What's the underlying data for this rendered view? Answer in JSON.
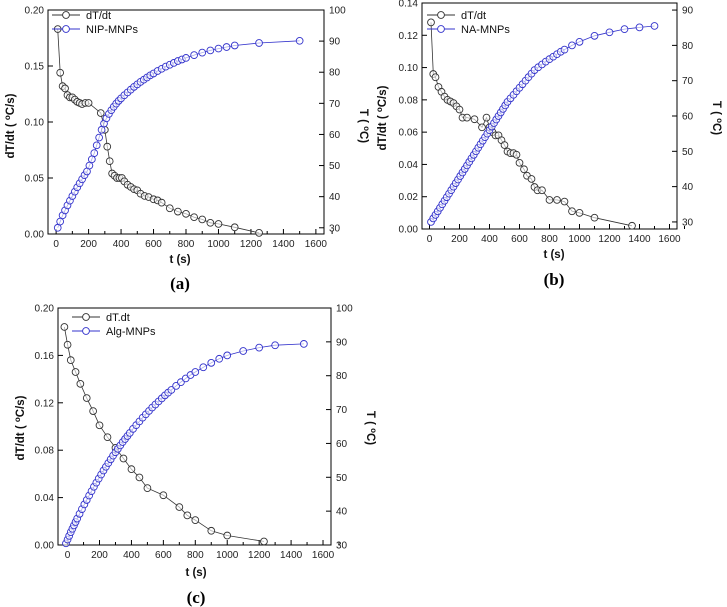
{
  "chart_data": [
    {
      "type": "line",
      "panel_label": "(a)",
      "xlabel": "t (s)",
      "ylabel_left": "dT/dt (oC/s)",
      "ylabel_right": "T (oC)",
      "x_ticks": [
        0,
        200,
        400,
        600,
        800,
        1000,
        1200,
        1400,
        1600
      ],
      "xlim": [
        -50,
        1650
      ],
      "yleft_ticks": [
        0.0,
        0.05,
        0.1,
        0.15,
        0.2
      ],
      "yleft_ticklabels": [
        "0.00",
        "0.05",
        "0.10",
        "0.15",
        "0.20"
      ],
      "yleft_lim": [
        0,
        0.2
      ],
      "yright_ticks": [
        30,
        40,
        50,
        60,
        70,
        80,
        90,
        100
      ],
      "yright_lim": [
        28,
        100
      ],
      "legend_position": "top-left",
      "colors": {
        "rate": "#333333",
        "temp": "#3333cc"
      },
      "series": [
        {
          "name": "dT/dt",
          "axis": "left",
          "x": [
            10,
            25,
            40,
            55,
            70,
            85,
            100,
            115,
            130,
            145,
            160,
            180,
            200,
            275,
            300,
            315,
            330,
            345,
            360,
            375,
            390,
            405,
            420,
            440,
            460,
            480,
            500,
            520,
            545,
            570,
            600,
            625,
            650,
            700,
            750,
            800,
            850,
            900,
            950,
            1000,
            1100,
            1250
          ],
          "values": [
            0.183,
            0.144,
            0.132,
            0.13,
            0.124,
            0.122,
            0.122,
            0.12,
            0.118,
            0.117,
            0.116,
            0.117,
            0.117,
            0.108,
            0.093,
            0.078,
            0.065,
            0.054,
            0.052,
            0.05,
            0.05,
            0.05,
            0.047,
            0.044,
            0.042,
            0.04,
            0.039,
            0.036,
            0.034,
            0.033,
            0.031,
            0.03,
            0.028,
            0.023,
            0.02,
            0.018,
            0.015,
            0.013,
            0.01,
            0.009,
            0.006,
            0.001
          ]
        },
        {
          "name": "NIP-MNPs",
          "axis": "right",
          "x": [
            10,
            25,
            40,
            55,
            70,
            85,
            100,
            115,
            130,
            145,
            160,
            175,
            190,
            205,
            220,
            235,
            250,
            265,
            280,
            295,
            310,
            325,
            340,
            355,
            370,
            385,
            400,
            420,
            440,
            460,
            480,
            500,
            520,
            540,
            560,
            580,
            600,
            625,
            650,
            675,
            700,
            725,
            750,
            775,
            800,
            850,
            900,
            950,
            1000,
            1050,
            1100,
            1250,
            1500
          ],
          "values": [
            30,
            32,
            34,
            35.6,
            37.2,
            38.7,
            40.2,
            41.6,
            43,
            44.3,
            45.6,
            46.9,
            48.1,
            50,
            52,
            54,
            56.5,
            59,
            61.5,
            63.5,
            65.2,
            66.6,
            67.8,
            68.9,
            69.9,
            70.8,
            71.6,
            72.6,
            73.5,
            74.4,
            75.3,
            76.1,
            76.9,
            77.6,
            78.3,
            79,
            79.6,
            80.4,
            81.1,
            81.8,
            82.4,
            83,
            83.6,
            84.1,
            84.6,
            85.5,
            86.3,
            87,
            87.6,
            88.1,
            88.6,
            89.4,
            90.1
          ]
        }
      ]
    },
    {
      "type": "line",
      "panel_label": "(b)",
      "xlabel": "t (s)",
      "ylabel_left": "dT/dt (oC/s)",
      "ylabel_right": "T (oC)",
      "x_ticks": [
        0,
        200,
        400,
        600,
        800,
        1000,
        1200,
        1400,
        1600
      ],
      "xlim": [
        -50,
        1650
      ],
      "yleft_ticks": [
        0.0,
        0.02,
        0.04,
        0.06,
        0.08,
        0.1,
        0.12,
        0.14
      ],
      "yleft_ticklabels": [
        "0.00",
        "0.02",
        "0.04",
        "0.06",
        "0.08",
        "0.10",
        "0.12",
        "0.14"
      ],
      "yleft_lim": [
        0,
        0.14
      ],
      "yright_ticks": [
        30,
        40,
        50,
        60,
        70,
        80,
        90
      ],
      "yright_lim": [
        28,
        92
      ],
      "legend_position": "top-left",
      "colors": {
        "rate": "#333333",
        "temp": "#3333cc"
      },
      "series": [
        {
          "name": "dT/dt",
          "axis": "left",
          "x": [
            10,
            25,
            40,
            60,
            80,
            100,
            120,
            140,
            160,
            180,
            200,
            220,
            250,
            300,
            350,
            380,
            400,
            420,
            440,
            460,
            480,
            500,
            520,
            540,
            560,
            580,
            600,
            630,
            650,
            680,
            700,
            720,
            750,
            800,
            850,
            900,
            950,
            1000,
            1100,
            1350
          ],
          "values": [
            0.128,
            0.096,
            0.094,
            0.088,
            0.085,
            0.082,
            0.08,
            0.079,
            0.078,
            0.076,
            0.074,
            0.069,
            0.069,
            0.068,
            0.063,
            0.069,
            0.063,
            0.06,
            0.058,
            0.058,
            0.055,
            0.052,
            0.048,
            0.047,
            0.047,
            0.046,
            0.041,
            0.037,
            0.033,
            0.031,
            0.026,
            0.024,
            0.024,
            0.018,
            0.018,
            0.017,
            0.011,
            0.01,
            0.007,
            0.002
          ]
        },
        {
          "name": "NA-MNPs",
          "axis": "right",
          "x": [
            10,
            25,
            40,
            55,
            70,
            85,
            100,
            115,
            130,
            145,
            160,
            175,
            190,
            205,
            220,
            235,
            250,
            265,
            280,
            295,
            310,
            325,
            340,
            355,
            370,
            385,
            400,
            415,
            430,
            445,
            460,
            475,
            490,
            505,
            520,
            540,
            560,
            580,
            600,
            620,
            640,
            660,
            680,
            700,
            725,
            750,
            775,
            800,
            825,
            850,
            875,
            900,
            950,
            1000,
            1100,
            1200,
            1300,
            1400,
            1500
          ],
          "values": [
            30,
            31,
            32,
            33,
            34,
            35,
            36,
            37,
            38,
            39,
            40,
            41,
            42,
            43,
            44,
            45,
            46,
            47,
            48,
            49,
            50,
            51,
            52,
            53,
            54,
            55,
            56,
            57,
            58,
            59,
            60,
            61,
            62,
            63,
            64,
            65,
            66,
            67,
            68,
            69,
            70,
            71,
            72,
            73,
            73.8,
            74.6,
            75.4,
            76.1,
            76.8,
            77.5,
            78.2,
            78.8,
            80,
            81,
            82.7,
            83.7,
            84.6,
            85.1,
            85.5
          ]
        }
      ]
    },
    {
      "type": "line",
      "panel_label": "(c)",
      "xlabel": "t (s)",
      "ylabel_left": "dT/dt (oC/s)",
      "ylabel_right": "T (oC)",
      "x_ticks": [
        0,
        200,
        400,
        600,
        800,
        1000,
        1200,
        1400,
        1600
      ],
      "xlim": [
        -60,
        1650
      ],
      "yleft_ticks": [
        0.0,
        0.04,
        0.08,
        0.12,
        0.16,
        0.2
      ],
      "yleft_ticklabels": [
        "0.00",
        "0.04",
        "0.08",
        "0.12",
        "0.16",
        "0.20"
      ],
      "yleft_lim": [
        0,
        0.2
      ],
      "yright_ticks": [
        30,
        40,
        50,
        60,
        70,
        80,
        90,
        100
      ],
      "yright_lim": [
        30,
        100
      ],
      "legend_position": "top-left",
      "colors": {
        "rate": "#333333",
        "temp": "#3333cc"
      },
      "series": [
        {
          "name": "dT.dt",
          "axis": "left",
          "x": [
            -20,
            0,
            20,
            50,
            80,
            120,
            160,
            200,
            250,
            300,
            350,
            400,
            450,
            500,
            600,
            700,
            750,
            800,
            900,
            1000,
            1230
          ],
          "values": [
            0.184,
            0.169,
            0.156,
            0.146,
            0.136,
            0.124,
            0.113,
            0.101,
            0.091,
            0.082,
            0.073,
            0.064,
            0.057,
            0.048,
            0.042,
            0.032,
            0.025,
            0.021,
            0.012,
            0.008,
            0.003
          ]
        },
        {
          "name": "Alg-MNPs",
          "axis": "right",
          "x": [
            -10,
            0,
            10,
            20,
            30,
            40,
            50,
            60,
            75,
            90,
            105,
            120,
            135,
            150,
            165,
            180,
            195,
            210,
            225,
            240,
            255,
            270,
            285,
            300,
            315,
            330,
            345,
            360,
            375,
            390,
            410,
            430,
            450,
            470,
            490,
            510,
            530,
            550,
            570,
            590,
            610,
            630,
            650,
            680,
            710,
            740,
            770,
            800,
            850,
            900,
            950,
            1000,
            1100,
            1200,
            1300,
            1480
          ],
          "values": [
            30.5,
            31.6,
            32.7,
            33.8,
            34.8,
            35.8,
            36.8,
            37.8,
            39.2,
            40.6,
            42,
            43.3,
            44.6,
            45.9,
            47.2,
            48.4,
            49.6,
            50.8,
            52,
            53.1,
            54.2,
            55.3,
            56.4,
            57.4,
            58.4,
            59.4,
            60.4,
            61.3,
            62.2,
            63.1,
            64.3,
            65.4,
            66.5,
            67.6,
            68.6,
            69.6,
            70.6,
            71.5,
            72.4,
            73.3,
            74.2,
            75,
            75.8,
            77,
            78.1,
            79.2,
            80.2,
            81.1,
            82.5,
            83.8,
            85,
            86,
            87.3,
            88.3,
            89,
            89.4
          ]
        }
      ]
    }
  ]
}
